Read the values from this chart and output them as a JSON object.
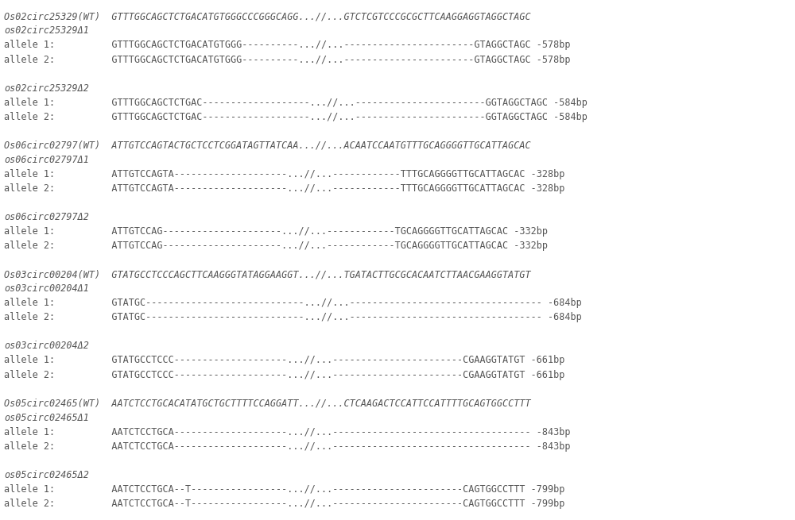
{
  "background_color": "#ffffff",
  "font_family": "DejaVu Sans Mono",
  "font_size": 8.5,
  "text_color": "#555555",
  "figsize": [
    10.0,
    6.55
  ],
  "dpi": 100,
  "lines": [
    {
      "text": "Os02circ25329(WT)  GTTTGGCAGCTCTGACATGTGGGCCCGGGCAGG...//...GTCTCGTCCCGCGCTTCAAGGAGGTAGGCTAGC",
      "italic": true
    },
    {
      "text": "os02circ25329Δ1",
      "italic": true
    },
    {
      "text": "allele 1:          GTTTGGCAGCTCTGACATGTGGG----------...//...-----------------------GTAGGCTAGC -578bp",
      "italic": false
    },
    {
      "text": "allele 2:          GTTTGGCAGCTCTGACATGTGGG----------...//...-----------------------GTAGGCTAGC -578bp",
      "italic": false
    },
    {
      "text": "",
      "italic": false
    },
    {
      "text": "os02circ25329Δ2",
      "italic": true
    },
    {
      "text": "allele 1:          GTTTGGCAGCTCTGAC-------------------...//...-----------------------GGTAGGCTAGC -584bp",
      "italic": false
    },
    {
      "text": "allele 2:          GTTTGGCAGCTCTGAC-------------------...//...-----------------------GGTAGGCTAGC -584bp",
      "italic": false
    },
    {
      "text": "",
      "italic": false
    },
    {
      "text": "Os06circ02797(WT)  ATTGTCCAGTACTGCTCCTCGGATAGTTATCAA...//...ACAATCCAATGTTTGCAGGGGTTGCATTAGCAC",
      "italic": true
    },
    {
      "text": "os06circ02797Δ1",
      "italic": true
    },
    {
      "text": "allele 1:          ATTGTCCAGTA--------------------...//...------------TTTGCAGGGGTTGCATTAGCAC -328bp",
      "italic": false
    },
    {
      "text": "allele 2:          ATTGTCCAGTA--------------------...//...------------TTTGCAGGGGTTGCATTAGCAC -328bp",
      "italic": false
    },
    {
      "text": "",
      "italic": false
    },
    {
      "text": "os06circ02797Δ2",
      "italic": true
    },
    {
      "text": "allele 1:          ATTGTCCAG---------------------...//...------------TGCAGGGGTTGCATTAGCAC -332bp",
      "italic": false
    },
    {
      "text": "allele 2:          ATTGTCCAG---------------------...//...------------TGCAGGGGTTGCATTAGCAC -332bp",
      "italic": false
    },
    {
      "text": "",
      "italic": false
    },
    {
      "text": "Os03circ00204(WT)  GTATGCCTCCCAGCTTCAAGGGTATAGGAAGGT...//...TGATACTTGCGCACAATCTTAACGAAGGTATGT",
      "italic": true
    },
    {
      "text": "os03circ00204Δ1",
      "italic": true
    },
    {
      "text": "allele 1:          GTATGC----------------------------...//...---------------------------------- -684bp",
      "italic": false
    },
    {
      "text": "allele 2:          GTATGC----------------------------...//...---------------------------------- -684bp",
      "italic": false
    },
    {
      "text": "",
      "italic": false
    },
    {
      "text": "os03circ00204Δ2",
      "italic": true
    },
    {
      "text": "allele 1:          GTATGCCTCCC--------------------...//...-----------------------CGAAGGTATGT -661bp",
      "italic": false
    },
    {
      "text": "allele 2:          GTATGCCTCCC--------------------...//...-----------------------CGAAGGTATGT -661bp",
      "italic": false
    },
    {
      "text": "",
      "italic": false
    },
    {
      "text": "Os05circ02465(WT)  AATCTCCTGCACATATGCTGCTTTTCCAGGATT...//...CTCAAGACTCCATTCCATTTTGCAGTGGCCTTT",
      "italic": true
    },
    {
      "text": "os05circ02465Δ1",
      "italic": true
    },
    {
      "text": "allele 1:          AATCTCCTGCA--------------------...//...----------------------------------- -843bp",
      "italic": false
    },
    {
      "text": "allele 2:          AATCTCCTGCA--------------------...//...----------------------------------- -843bp",
      "italic": false
    },
    {
      "text": "",
      "italic": false
    },
    {
      "text": "os05circ02465Δ2",
      "italic": true
    },
    {
      "text": "allele 1:          AATCTCCTGCA--T-----------------...//...-----------------------CAGTGGCCTTT -799bp",
      "italic": false
    },
    {
      "text": "allele 2:          AATCTCCTGCA--T-----------------...//...-----------------------CAGTGGCCTTT -799bp",
      "italic": false
    }
  ]
}
